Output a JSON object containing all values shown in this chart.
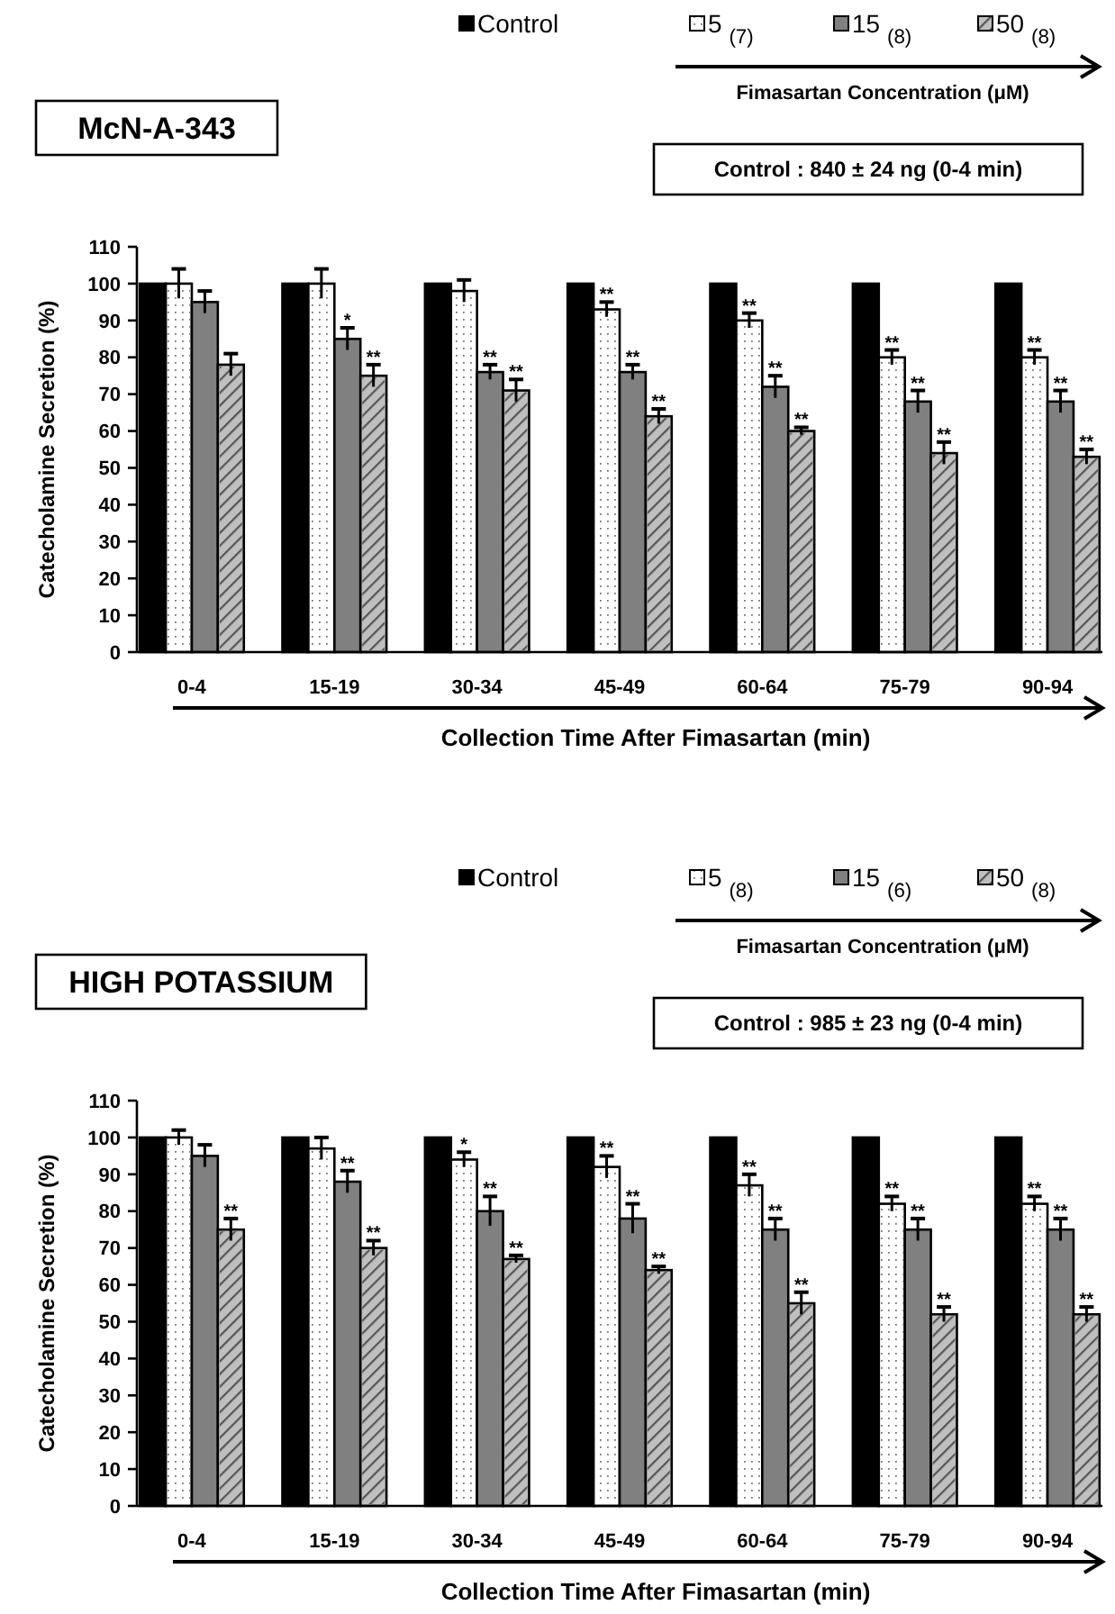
{
  "chart_data": [
    {
      "type": "bar",
      "title": "McN-A-343",
      "xlabel": "Collection Time After Fimasartan (min)",
      "ylabel": "Catecholamine Secretion (%)",
      "legend_title": "Fimasartan  Concentration (μM)",
      "annotations": [
        "Control : 840 ± 24 ng (0-4 min)"
      ],
      "categories": [
        "0-4",
        "15-19",
        "30-34",
        "45-49",
        "60-64",
        "75-79",
        "90-94"
      ],
      "ylim": [
        0,
        110
      ],
      "yticks": [
        0,
        10,
        20,
        30,
        40,
        50,
        60,
        70,
        80,
        90,
        100,
        110
      ],
      "legend": "top right",
      "grid": false,
      "series": [
        {
          "name": "Control",
          "color": "#000000",
          "values": [
            100,
            100,
            100,
            100,
            100,
            100,
            100
          ]
        },
        {
          "name": "5 $_{(7)}$",
          "color": "#ffffff",
          "values": [
            100,
            100,
            98,
            93,
            90,
            80,
            80
          ],
          "errors": [
            4,
            4,
            3,
            2,
            2,
            2,
            2
          ],
          "value_labels": [
            null,
            null,
            null,
            "**",
            "**",
            "**",
            "**"
          ]
        },
        {
          "name": "15 $_{(8)}$",
          "color": "#808080",
          "values": [
            95,
            85,
            76,
            76,
            72,
            68,
            68
          ],
          "errors": [
            3,
            3,
            2,
            2,
            3,
            3,
            3
          ],
          "value_labels": [
            null,
            "*",
            "**",
            "**",
            "**",
            "**",
            "**"
          ]
        },
        {
          "name": "50 $_{(8)}$",
          "color": "#bfbfbf",
          "values": [
            78,
            75,
            71,
            64,
            60,
            54,
            53
          ],
          "errors": [
            3,
            3,
            3,
            2,
            1,
            3,
            2
          ],
          "value_labels": [
            null,
            "**",
            "**",
            "**",
            "**",
            "**",
            "**"
          ]
        }
      ]
    },
    {
      "type": "bar",
      "title": "HIGH POTASSIUM",
      "xlabel": "Collection Time After Fimasartan (min)",
      "ylabel": "Catecholamine Secretion (%)",
      "legend_title": "Fimasartan  Concentration (μM)",
      "annotations": [
        "Control : 985 ± 23 ng (0-4 min)"
      ],
      "categories": [
        "0-4",
        "15-19",
        "30-34",
        "45-49",
        "60-64",
        "75-79",
        "90-94"
      ],
      "ylim": [
        0,
        110
      ],
      "yticks": [
        0,
        10,
        20,
        30,
        40,
        50,
        60,
        70,
        80,
        90,
        100,
        110
      ],
      "legend": "top right",
      "grid": false,
      "series": [
        {
          "name": "Control",
          "color": "#000000",
          "values": [
            100,
            100,
            100,
            100,
            100,
            100,
            100
          ]
        },
        {
          "name": "5 $_{(8)}$",
          "color": "#ffffff",
          "values": [
            100,
            97,
            94,
            92,
            87,
            82,
            82
          ],
          "errors": [
            2,
            3,
            2,
            3,
            3,
            2,
            2
          ],
          "value_labels": [
            null,
            null,
            "*",
            "**",
            "**",
            "**",
            "**"
          ]
        },
        {
          "name": "15 $_{(6)}$",
          "color": "#808080",
          "values": [
            95,
            88,
            80,
            78,
            75,
            75,
            75
          ],
          "errors": [
            3,
            3,
            4,
            4,
            3,
            3,
            3
          ],
          "value_labels": [
            null,
            "**",
            "**",
            "**",
            "**",
            "**",
            "**"
          ]
        },
        {
          "name": "50 $_{(8)}$",
          "color": "#bfbfbf",
          "values": [
            75,
            70,
            67,
            64,
            55,
            52,
            52
          ],
          "errors": [
            3,
            2,
            1,
            1,
            3,
            2,
            2
          ],
          "value_labels": [
            "**",
            "**",
            "**",
            "**",
            "**",
            "**",
            "**"
          ]
        }
      ]
    }
  ]
}
